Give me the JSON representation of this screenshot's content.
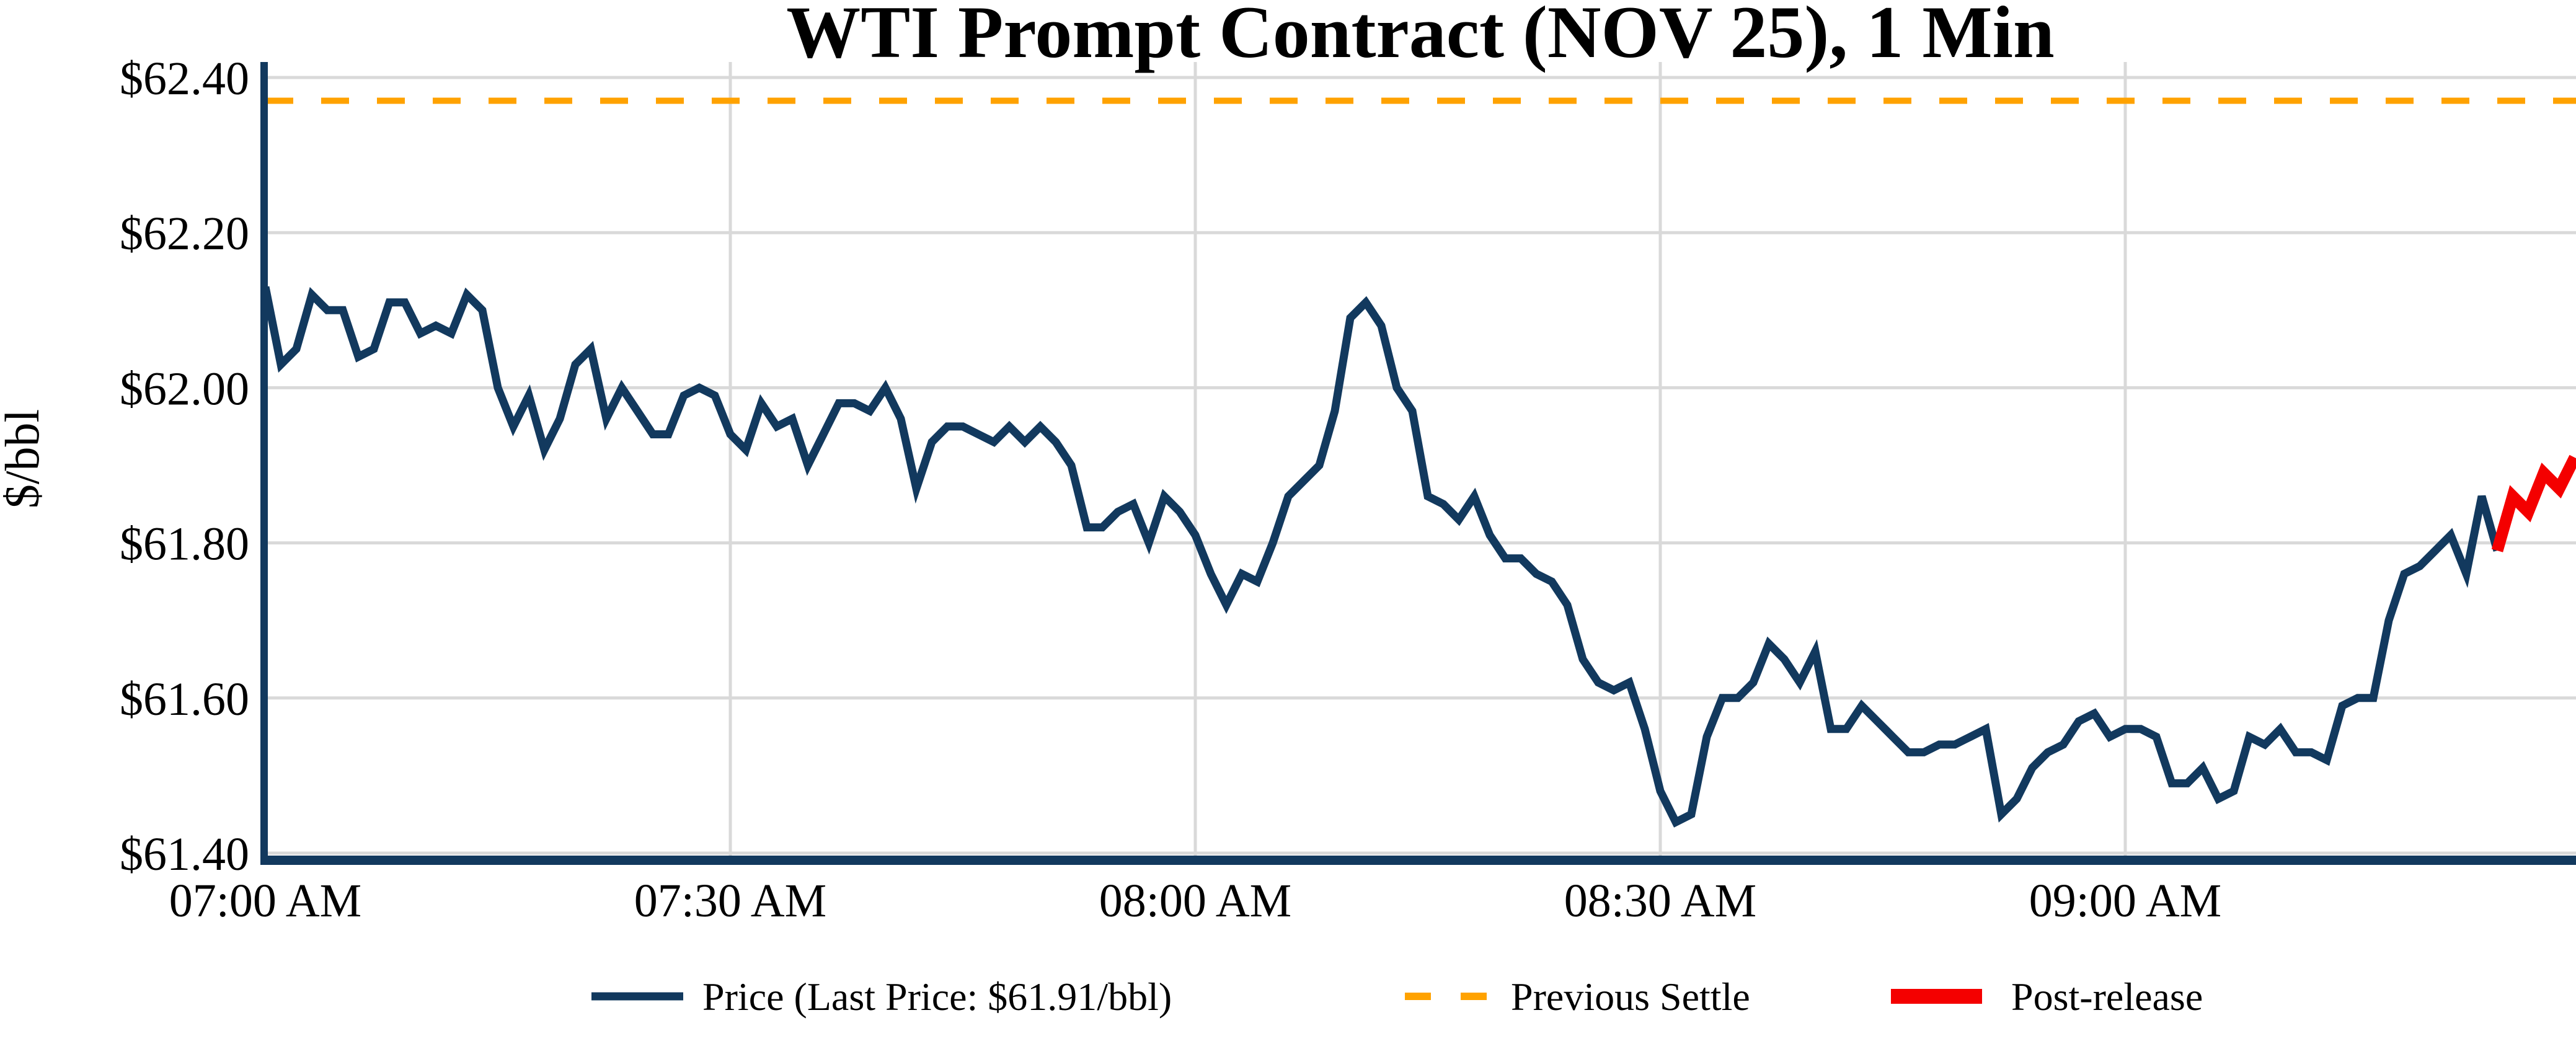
{
  "title": "WTI Prompt Contract (NOV 25), 1 Min",
  "y_axis_label": "$/bbl",
  "legend": {
    "price_label": "Price (Last Price: $61.91/bbl)",
    "prev_settle_label": "Previous Settle",
    "post_release_label": "Post-release"
  },
  "colors": {
    "price": "#12395E",
    "prev_settle": "#FFA200",
    "post_release": "#F40000",
    "grid": "#D9D9D9",
    "text": "#000000",
    "background": "#FFFFFF"
  },
  "chart_data": {
    "type": "line",
    "title": "WTI Prompt Contract (NOV 25), 1 Min",
    "xlabel": "",
    "ylabel": "$/bbl",
    "x_unit": "minutes since 07:00 AM",
    "xlim": [
      0,
      149.1
    ],
    "ylim": [
      61.39,
      62.42
    ],
    "grid": true,
    "legend_position": "bottom-center",
    "previous_settle": 62.37,
    "last_price": 61.91,
    "yticks": [
      {
        "value": 61.4,
        "label": "$61.40"
      },
      {
        "value": 61.6,
        "label": "$61.60"
      },
      {
        "value": 61.8,
        "label": "$61.80"
      },
      {
        "value": 62.0,
        "label": "$62.00"
      },
      {
        "value": 62.2,
        "label": "$62.20"
      },
      {
        "value": 62.4,
        "label": "$62.40"
      }
    ],
    "xticks": [
      {
        "minute": 0,
        "label": "07:00 AM"
      },
      {
        "minute": 30,
        "label": "07:30 AM"
      },
      {
        "minute": 60,
        "label": "08:00 AM"
      },
      {
        "minute": 90,
        "label": "08:30 AM"
      },
      {
        "minute": 120,
        "label": "09:00 AM"
      }
    ],
    "series": [
      {
        "name": "Price",
        "color_key": "price",
        "stroke_width": 13,
        "points": [
          [
            0,
            62.13
          ],
          [
            1,
            62.03
          ],
          [
            2,
            62.05
          ],
          [
            3,
            62.12
          ],
          [
            4,
            62.1
          ],
          [
            5,
            62.1
          ],
          [
            6,
            62.04
          ],
          [
            7,
            62.05
          ],
          [
            8,
            62.11
          ],
          [
            9,
            62.11
          ],
          [
            10,
            62.07
          ],
          [
            11,
            62.08
          ],
          [
            12,
            62.07
          ],
          [
            13,
            62.12
          ],
          [
            14,
            62.1
          ],
          [
            15,
            62.0
          ],
          [
            16,
            61.95
          ],
          [
            17,
            61.99
          ],
          [
            18,
            61.92
          ],
          [
            19,
            61.96
          ],
          [
            20,
            62.03
          ],
          [
            21,
            62.05
          ],
          [
            22,
            61.96
          ],
          [
            23,
            62.0
          ],
          [
            24,
            61.97
          ],
          [
            25,
            61.94
          ],
          [
            26,
            61.94
          ],
          [
            27,
            61.99
          ],
          [
            28,
            62.0
          ],
          [
            29,
            61.99
          ],
          [
            30,
            61.94
          ],
          [
            31,
            61.92
          ],
          [
            32,
            61.98
          ],
          [
            33,
            61.95
          ],
          [
            34,
            61.96
          ],
          [
            35,
            61.9
          ],
          [
            36,
            61.94
          ],
          [
            37,
            61.98
          ],
          [
            38,
            61.98
          ],
          [
            39,
            61.97
          ],
          [
            40,
            62.0
          ],
          [
            41,
            61.96
          ],
          [
            42,
            61.87
          ],
          [
            43,
            61.93
          ],
          [
            44,
            61.95
          ],
          [
            45,
            61.95
          ],
          [
            46,
            61.94
          ],
          [
            47,
            61.93
          ],
          [
            48,
            61.95
          ],
          [
            49,
            61.93
          ],
          [
            50,
            61.95
          ],
          [
            51,
            61.93
          ],
          [
            52,
            61.9
          ],
          [
            53,
            61.82
          ],
          [
            54,
            61.82
          ],
          [
            55,
            61.84
          ],
          [
            56,
            61.85
          ],
          [
            57,
            61.8
          ],
          [
            58,
            61.86
          ],
          [
            59,
            61.84
          ],
          [
            60,
            61.81
          ],
          [
            61,
            61.76
          ],
          [
            62,
            61.72
          ],
          [
            63,
            61.76
          ],
          [
            64,
            61.75
          ],
          [
            65,
            61.8
          ],
          [
            66,
            61.86
          ],
          [
            67,
            61.88
          ],
          [
            68,
            61.9
          ],
          [
            69,
            61.97
          ],
          [
            70,
            62.09
          ],
          [
            71,
            62.11
          ],
          [
            72,
            62.08
          ],
          [
            73,
            62.0
          ],
          [
            74,
            61.97
          ],
          [
            75,
            61.86
          ],
          [
            76,
            61.85
          ],
          [
            77,
            61.83
          ],
          [
            78,
            61.86
          ],
          [
            79,
            61.81
          ],
          [
            80,
            61.78
          ],
          [
            81,
            61.78
          ],
          [
            82,
            61.76
          ],
          [
            83,
            61.75
          ],
          [
            84,
            61.72
          ],
          [
            85,
            61.65
          ],
          [
            86,
            61.62
          ],
          [
            87,
            61.61
          ],
          [
            88,
            61.62
          ],
          [
            89,
            61.56
          ],
          [
            90,
            61.48
          ],
          [
            91,
            61.44
          ],
          [
            92,
            61.45
          ],
          [
            93,
            61.55
          ],
          [
            94,
            61.6
          ],
          [
            95,
            61.6
          ],
          [
            96,
            61.62
          ],
          [
            97,
            61.67
          ],
          [
            98,
            61.65
          ],
          [
            99,
            61.62
          ],
          [
            100,
            61.66
          ],
          [
            101,
            61.56
          ],
          [
            102,
            61.56
          ],
          [
            103,
            61.59
          ],
          [
            104,
            61.57
          ],
          [
            105,
            61.55
          ],
          [
            106,
            61.53
          ],
          [
            107,
            61.53
          ],
          [
            108,
            61.54
          ],
          [
            109,
            61.54
          ],
          [
            110,
            61.55
          ],
          [
            111,
            61.56
          ],
          [
            112,
            61.45
          ],
          [
            113,
            61.47
          ],
          [
            114,
            61.51
          ],
          [
            115,
            61.53
          ],
          [
            116,
            61.54
          ],
          [
            117,
            61.57
          ],
          [
            118,
            61.58
          ],
          [
            119,
            61.55
          ],
          [
            120,
            61.56
          ],
          [
            121,
            61.56
          ],
          [
            122,
            61.55
          ],
          [
            123,
            61.49
          ],
          [
            124,
            61.49
          ],
          [
            125,
            61.51
          ],
          [
            126,
            61.47
          ],
          [
            127,
            61.48
          ],
          [
            128,
            61.55
          ],
          [
            129,
            61.54
          ],
          [
            130,
            61.56
          ],
          [
            131,
            61.53
          ],
          [
            132,
            61.53
          ],
          [
            133,
            61.52
          ],
          [
            134,
            61.59
          ],
          [
            135,
            61.6
          ],
          [
            136,
            61.6
          ],
          [
            137,
            61.7
          ],
          [
            138,
            61.76
          ],
          [
            139,
            61.77
          ],
          [
            140,
            61.79
          ],
          [
            141,
            61.81
          ],
          [
            142,
            61.76
          ],
          [
            143,
            61.86
          ],
          [
            144,
            61.79
          ]
        ]
      },
      {
        "name": "Post-release",
        "color_key": "post_release",
        "stroke_width": 19,
        "points": [
          [
            144,
            61.79
          ],
          [
            145,
            61.86
          ],
          [
            146,
            61.84
          ],
          [
            147,
            61.89
          ],
          [
            148,
            61.87
          ],
          [
            149,
            61.91
          ]
        ]
      }
    ]
  }
}
